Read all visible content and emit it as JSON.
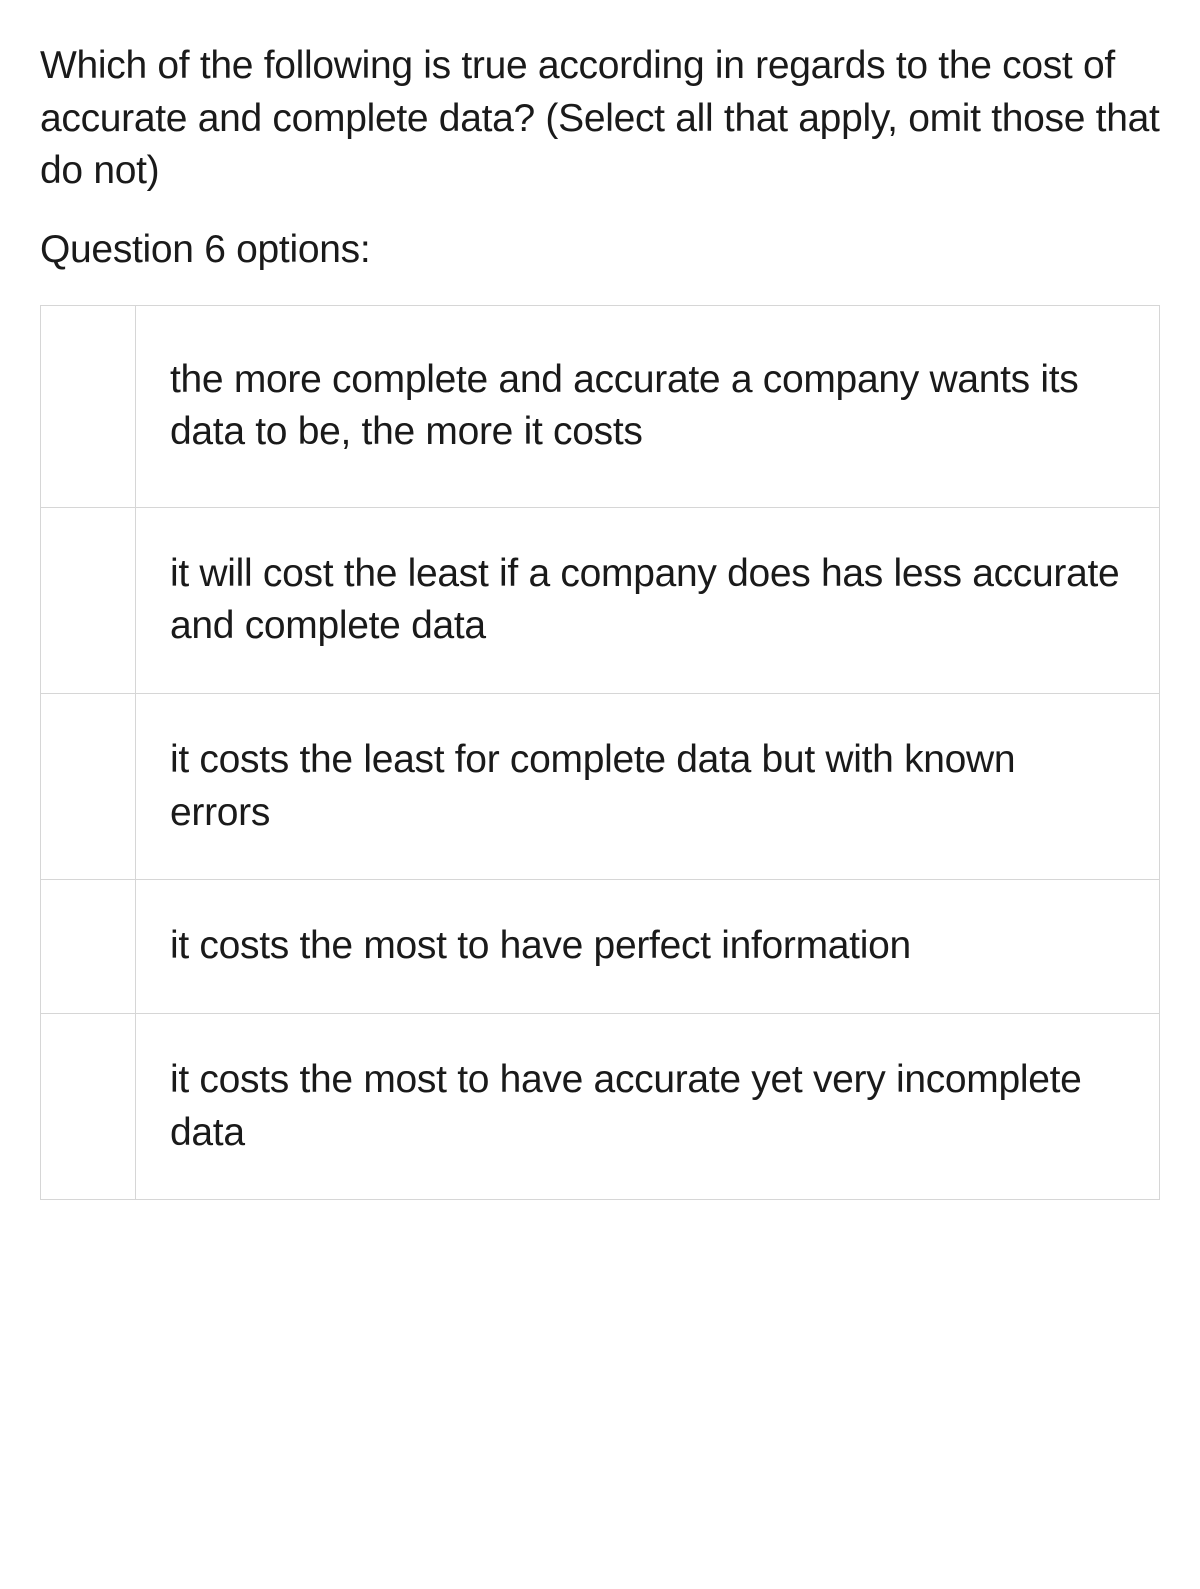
{
  "question": {
    "text": "Which of the following is true according in regards to the cost of accurate and complete data? (Select all that apply, omit those that do not)",
    "options_label": "Question 6 options:"
  },
  "options": [
    {
      "text": "the more complete and accurate a company wants its data to be, the more it costs"
    },
    {
      "text": "it will cost the least if a company does has less accurate and complete data"
    },
    {
      "text": "it costs the least for complete data but with known errors"
    },
    {
      "text": "it costs the most to have perfect information"
    },
    {
      "text": "it costs the most to have accurate yet very incomplete data"
    }
  ],
  "styles": {
    "text_color": "#1a1a1a",
    "background_color": "#ffffff",
    "border_color": "#d6d6d6",
    "font_size": 39
  }
}
